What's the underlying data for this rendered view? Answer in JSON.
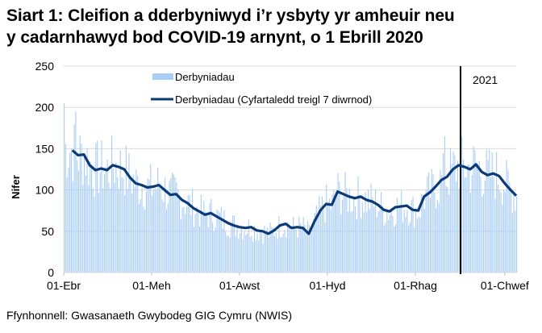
{
  "title_line1": "Siart 1: Cleifion a dderbyniwyd i’r ysbyty yr amheuir neu",
  "title_line2": "y cadarnhawyd bod COVID-19 arnynt, o 1 Ebrill 2020",
  "source": "Ffynhonnell: Gwasanaeth Gwybodeg GIG Cymru (NWIS)",
  "colors": {
    "bars": "#a9cdf7",
    "line": "#0b3a78",
    "grid": "#d9d9d9",
    "year_marker": "#000000"
  },
  "chart_data": {
    "type": "bar+line",
    "title": "Siart 1: Cleifion a dderbyniwyd i’r ysbyty yr amheuir neu y cadarnhawyd bod COVID-19 arnynt, o 1 Ebrill 2020",
    "xlabel": "",
    "ylabel": "Nifer",
    "ylim": [
      0,
      250
    ],
    "yticks": [
      0,
      50,
      100,
      150,
      200,
      250
    ],
    "xticks": [
      "01-Ebr",
      "01-Meh",
      "01-Awst",
      "01-Hyd",
      "01-Rhag",
      "01-Chwef"
    ],
    "grid": true,
    "legend_position": "top-center",
    "annotation": {
      "text": "2021",
      "position": "vertical line at 01-Ion"
    },
    "series": [
      {
        "name": "Derbyniadau",
        "type": "bar",
        "description": "daily admissions, noisy around the rolling average; peaks ~205 early April, ~165 late December"
      },
      {
        "name": "Derbyniadau  (Cyfartaledd treigl 7 diwrnod)",
        "type": "line",
        "x_days_from_01_Apr": [
          6,
          10,
          14,
          18,
          22,
          26,
          30,
          34,
          38,
          42,
          46,
          50,
          54,
          58,
          62,
          66,
          70,
          74,
          78,
          82,
          86,
          90,
          94,
          98,
          102,
          106,
          110,
          114,
          118,
          122,
          126,
          130,
          134,
          138,
          142,
          146,
          150,
          154,
          158,
          162,
          166,
          170,
          174,
          178,
          182,
          186,
          190,
          194,
          198,
          202,
          206,
          210,
          214,
          218,
          222,
          226,
          230,
          234,
          238,
          242,
          246,
          250,
          254,
          258,
          262,
          266,
          270,
          274,
          278,
          282,
          286,
          290,
          294,
          298,
          302,
          306,
          310,
          314
        ],
        "values": [
          148,
          142,
          143,
          130,
          124,
          126,
          124,
          130,
          128,
          125,
          115,
          108,
          106,
          103,
          104,
          106,
          100,
          94,
          95,
          88,
          84,
          78,
          74,
          70,
          72,
          68,
          64,
          60,
          57,
          55,
          54,
          55,
          51,
          50,
          47,
          51,
          57,
          59,
          54,
          55,
          54,
          47,
          62,
          75,
          83,
          82,
          98,
          95,
          92,
          90,
          92,
          88,
          86,
          82,
          76,
          74,
          79,
          80,
          81,
          76,
          75,
          92,
          97,
          104,
          112,
          116,
          125,
          130,
          128,
          125,
          131,
          122,
          118,
          120,
          117,
          108,
          100,
          93
        ]
      }
    ]
  },
  "yaxis": {
    "label": "Nifer",
    "ticks": [
      "250",
      "200",
      "150",
      "100",
      "50",
      "0"
    ]
  },
  "xaxis": {
    "ticks": [
      "01-Ebr",
      "01-Meh",
      "01-Awst",
      "01-Hyd",
      "01-Rhag",
      "01-Chwef"
    ]
  },
  "legend": {
    "bars": "Derbyniadau",
    "line": "Derbyniadau  (Cyfartaledd treigl 7 diwrnod)"
  },
  "year_label": "2021"
}
